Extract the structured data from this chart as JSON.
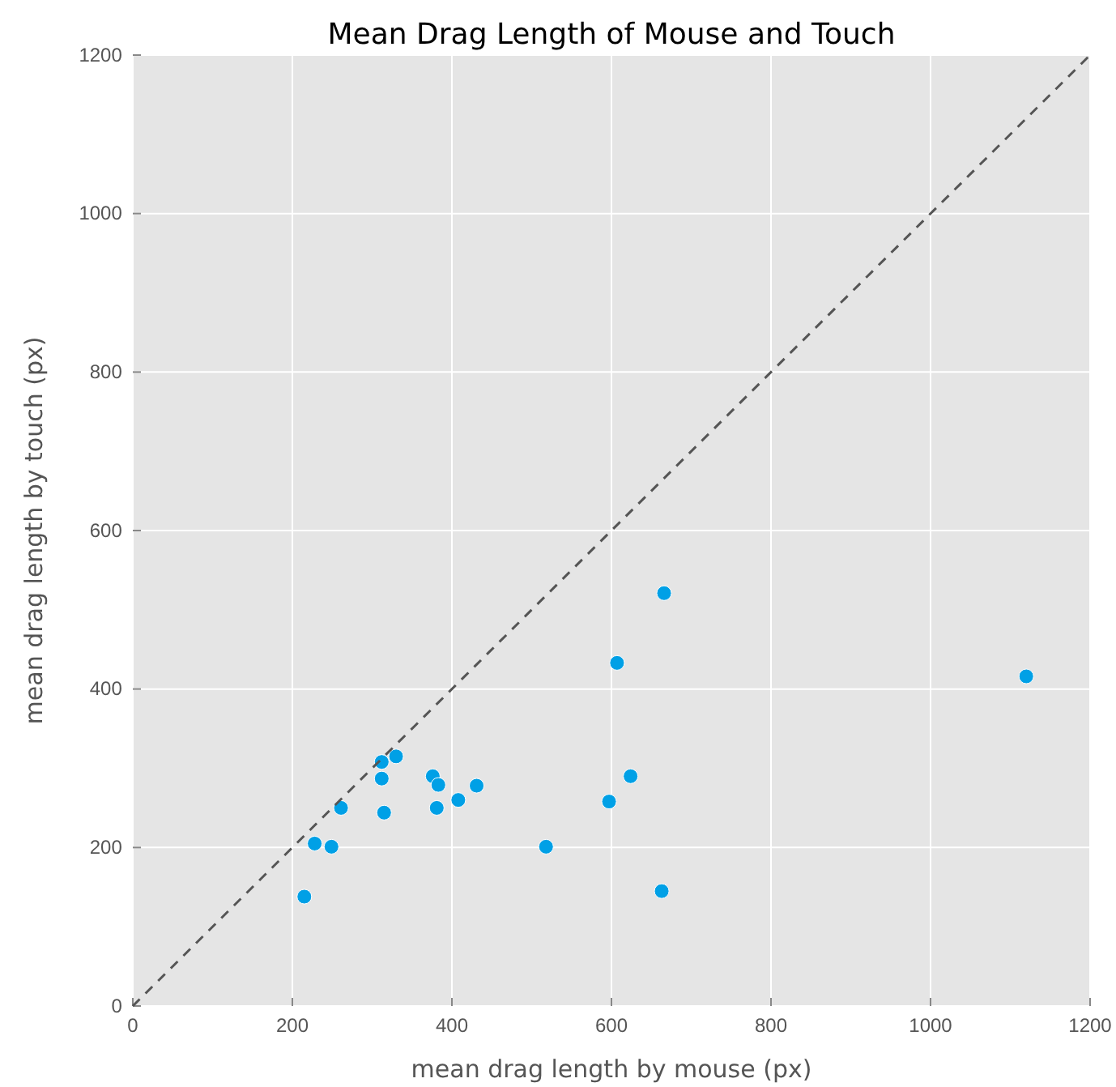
{
  "chart_data": {
    "type": "scatter",
    "title": "Mean Drag Length of Mouse and Touch",
    "xlabel": "mean drag length by mouse (px)",
    "ylabel": "mean drag length by touch (px)",
    "series": [
      {
        "color": "#00a0e6",
        "marker": "circle",
        "x": [
          215,
          228,
          249,
          261,
          312,
          330,
          312,
          315,
          376,
          383,
          381,
          408,
          431,
          518,
          597,
          624,
          607,
          666,
          663,
          1120
        ],
        "values": [
          138,
          205,
          201,
          250,
          308,
          315,
          287,
          244,
          290,
          279,
          250,
          260,
          278,
          201,
          258,
          290,
          433,
          521,
          145,
          416
        ]
      },
      {
        "type": "line",
        "color": "#555555",
        "line_style": "dashed",
        "marker": "none",
        "x": [
          0,
          1200
        ],
        "values": [
          0,
          1200
        ]
      }
    ],
    "xlim": [
      0,
      1200
    ],
    "ylim": [
      0,
      1200
    ],
    "xticks": [
      0,
      200,
      400,
      600,
      800,
      1000,
      1200
    ],
    "yticks": [
      0,
      200,
      400,
      600,
      800,
      1000,
      1200
    ],
    "grid": true
  }
}
